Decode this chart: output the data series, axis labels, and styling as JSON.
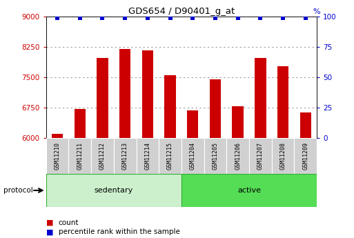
{
  "title": "GDS654 / D90401_g_at",
  "samples": [
    "GSM11210",
    "GSM11211",
    "GSM11212",
    "GSM11213",
    "GSM11214",
    "GSM11215",
    "GSM11204",
    "GSM11205",
    "GSM11206",
    "GSM11207",
    "GSM11208",
    "GSM11209"
  ],
  "counts": [
    6100,
    6720,
    7980,
    8200,
    8160,
    7550,
    6680,
    7450,
    6780,
    7980,
    7780,
    6640
  ],
  "groups": [
    "sedentary",
    "sedentary",
    "sedentary",
    "sedentary",
    "sedentary",
    "sedentary",
    "active",
    "active",
    "active",
    "active",
    "active",
    "active"
  ],
  "group_colors": {
    "sedentary": "#ccf0cc",
    "active": "#55dd55"
  },
  "bar_color": "#cc0000",
  "dot_color": "#0000cc",
  "ylim_left": [
    6000,
    9000
  ],
  "ylim_right": [
    0,
    100
  ],
  "yticks_left": [
    6000,
    6750,
    7500,
    8250,
    9000
  ],
  "yticks_right": [
    0,
    25,
    50,
    75,
    100
  ],
  "tick_label_color_left": "#cc0000",
  "tick_label_color_right": "#0000cc",
  "legend_count_color": "#cc0000",
  "legend_percentile_color": "#0000cc",
  "sample_bg_color": "#d0d0d0",
  "protocol_label": "protocol",
  "background_color": "#ffffff",
  "grid_color": "#888888",
  "n_sedentary": 6,
  "n_active": 6
}
